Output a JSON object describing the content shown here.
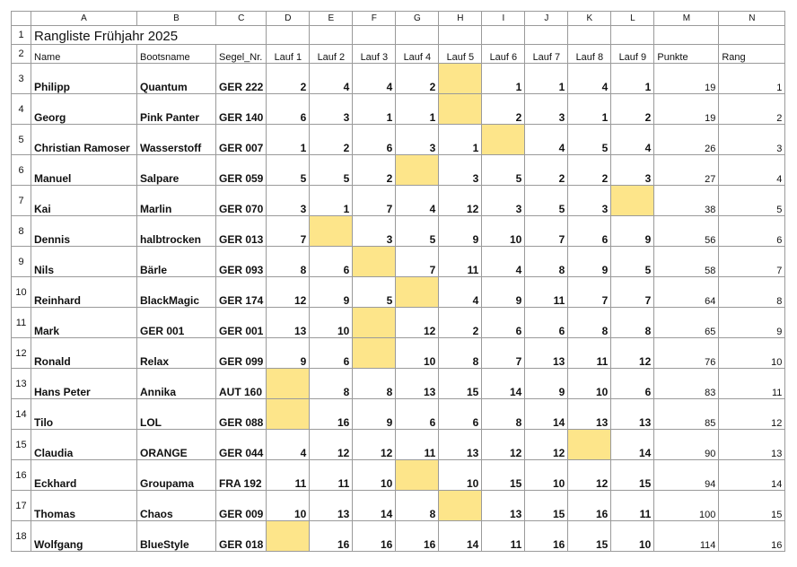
{
  "column_letters": [
    "A",
    "B",
    "C",
    "D",
    "E",
    "F",
    "G",
    "H",
    "I",
    "J",
    "K",
    "L",
    "M",
    "N"
  ],
  "title": "Rangliste Frühjahr 2025",
  "headers": [
    "Name",
    "Bootsname",
    "Segel_Nr.",
    "Lauf 1",
    "Lauf 2",
    "Lauf 3",
    "Lauf 4",
    "Lauf 5",
    "Lauf 6",
    "Lauf 7",
    "Lauf 8",
    "Lauf 9",
    "Punkte",
    "Rang"
  ],
  "rows": [
    {
      "name": "Philipp",
      "boat": "Quantum",
      "sail": "GER 222",
      "laufs": [
        "2",
        "4",
        "4",
        "2",
        "",
        "1",
        "1",
        "4",
        "1"
      ],
      "punkte": "19",
      "rang": "1"
    },
    {
      "name": "Georg",
      "boat": "Pink Panter",
      "sail": "GER 140",
      "laufs": [
        "6",
        "3",
        "1",
        "1",
        "",
        "2",
        "3",
        "1",
        "2"
      ],
      "punkte": "19",
      "rang": "2"
    },
    {
      "name": "Christian Ramoser",
      "boat": "Wasserstoff",
      "sail": "GER 007",
      "laufs": [
        "1",
        "2",
        "6",
        "3",
        "1",
        "",
        "4",
        "5",
        "4"
      ],
      "punkte": "26",
      "rang": "3"
    },
    {
      "name": "Manuel",
      "boat": "Salpare",
      "sail": "GER 059",
      "laufs": [
        "5",
        "5",
        "2",
        "",
        "3",
        "5",
        "2",
        "2",
        "3"
      ],
      "punkte": "27",
      "rang": "4"
    },
    {
      "name": "Kai",
      "boat": "Marlin",
      "sail": "GER 070",
      "laufs": [
        "3",
        "1",
        "7",
        "4",
        "12",
        "3",
        "5",
        "3",
        ""
      ],
      "punkte": "38",
      "rang": "5"
    },
    {
      "name": "Dennis",
      "boat": "halbtrocken",
      "sail": "GER 013",
      "laufs": [
        "7",
        "",
        "3",
        "5",
        "9",
        "10",
        "7",
        "6",
        "9"
      ],
      "punkte": "56",
      "rang": "6"
    },
    {
      "name": "Nils",
      "boat": "Bärle",
      "sail": "GER 093",
      "laufs": [
        "8",
        "6",
        "",
        "7",
        "11",
        "4",
        "8",
        "9",
        "5"
      ],
      "punkte": "58",
      "rang": "7"
    },
    {
      "name": "Reinhard",
      "boat": "BlackMagic",
      "sail": "GER 174",
      "laufs": [
        "12",
        "9",
        "5",
        "",
        "4",
        "9",
        "11",
        "7",
        "7"
      ],
      "punkte": "64",
      "rang": "8"
    },
    {
      "name": "Mark",
      "boat": "GER 001",
      "sail": "GER 001",
      "laufs": [
        "13",
        "10",
        "",
        "12",
        "2",
        "6",
        "6",
        "8",
        "8"
      ],
      "punkte": "65",
      "rang": "9"
    },
    {
      "name": "Ronald",
      "boat": "Relax",
      "sail": "GER 099",
      "laufs": [
        "9",
        "6",
        "",
        "10",
        "8",
        "7",
        "13",
        "11",
        "12"
      ],
      "punkte": "76",
      "rang": "10"
    },
    {
      "name": "Hans Peter",
      "boat": "Annika",
      "sail": "AUT 160",
      "laufs": [
        "",
        "8",
        "8",
        "13",
        "15",
        "14",
        "9",
        "10",
        "6"
      ],
      "punkte": "83",
      "rang": "11"
    },
    {
      "name": "Tilo",
      "boat": "LOL",
      "sail": "GER 088",
      "laufs": [
        "",
        "16",
        "9",
        "6",
        "6",
        "8",
        "14",
        "13",
        "13"
      ],
      "punkte": "85",
      "rang": "12"
    },
    {
      "name": "Claudia",
      "boat": "ORANGE",
      "sail": "GER 044",
      "laufs": [
        "4",
        "12",
        "12",
        "11",
        "13",
        "12",
        "12",
        "",
        "14"
      ],
      "punkte": "90",
      "rang": "13"
    },
    {
      "name": "Eckhard",
      "boat": "Groupama",
      "sail": "FRA 192",
      "laufs": [
        "11",
        "11",
        "10",
        "",
        "10",
        "15",
        "10",
        "12",
        "15"
      ],
      "punkte": "94",
      "rang": "14"
    },
    {
      "name": "Thomas",
      "boat": "Chaos",
      "sail": "GER 009",
      "laufs": [
        "10",
        "13",
        "14",
        "8",
        "",
        "13",
        "15",
        "16",
        "11"
      ],
      "punkte": "100",
      "rang": "15"
    },
    {
      "name": "Wolfgang",
      "boat": "BlueStyle",
      "sail": "GER 018",
      "laufs": [
        "",
        "16",
        "16",
        "16",
        "14",
        "11",
        "16",
        "15",
        "10"
      ],
      "punkte": "114",
      "rang": "16"
    }
  ],
  "highlight_color": "#fde58a",
  "highlighted_cells": [
    {
      "row": 0,
      "lauf": 5
    },
    {
      "row": 1,
      "lauf": 5
    },
    {
      "row": 2,
      "lauf": 6
    },
    {
      "row": 3,
      "lauf": 4
    },
    {
      "row": 4,
      "lauf": 9
    },
    {
      "row": 5,
      "lauf": 2
    },
    {
      "row": 6,
      "lauf": 3
    },
    {
      "row": 7,
      "lauf": 4
    },
    {
      "row": 8,
      "lauf": 3
    },
    {
      "row": 9,
      "lauf": 3
    },
    {
      "row": 10,
      "lauf": 1
    },
    {
      "row": 11,
      "lauf": 1
    },
    {
      "row": 12,
      "lauf": 8
    },
    {
      "row": 13,
      "lauf": 4
    },
    {
      "row": 14,
      "lauf": 5
    },
    {
      "row": 15,
      "lauf": 1
    }
  ]
}
